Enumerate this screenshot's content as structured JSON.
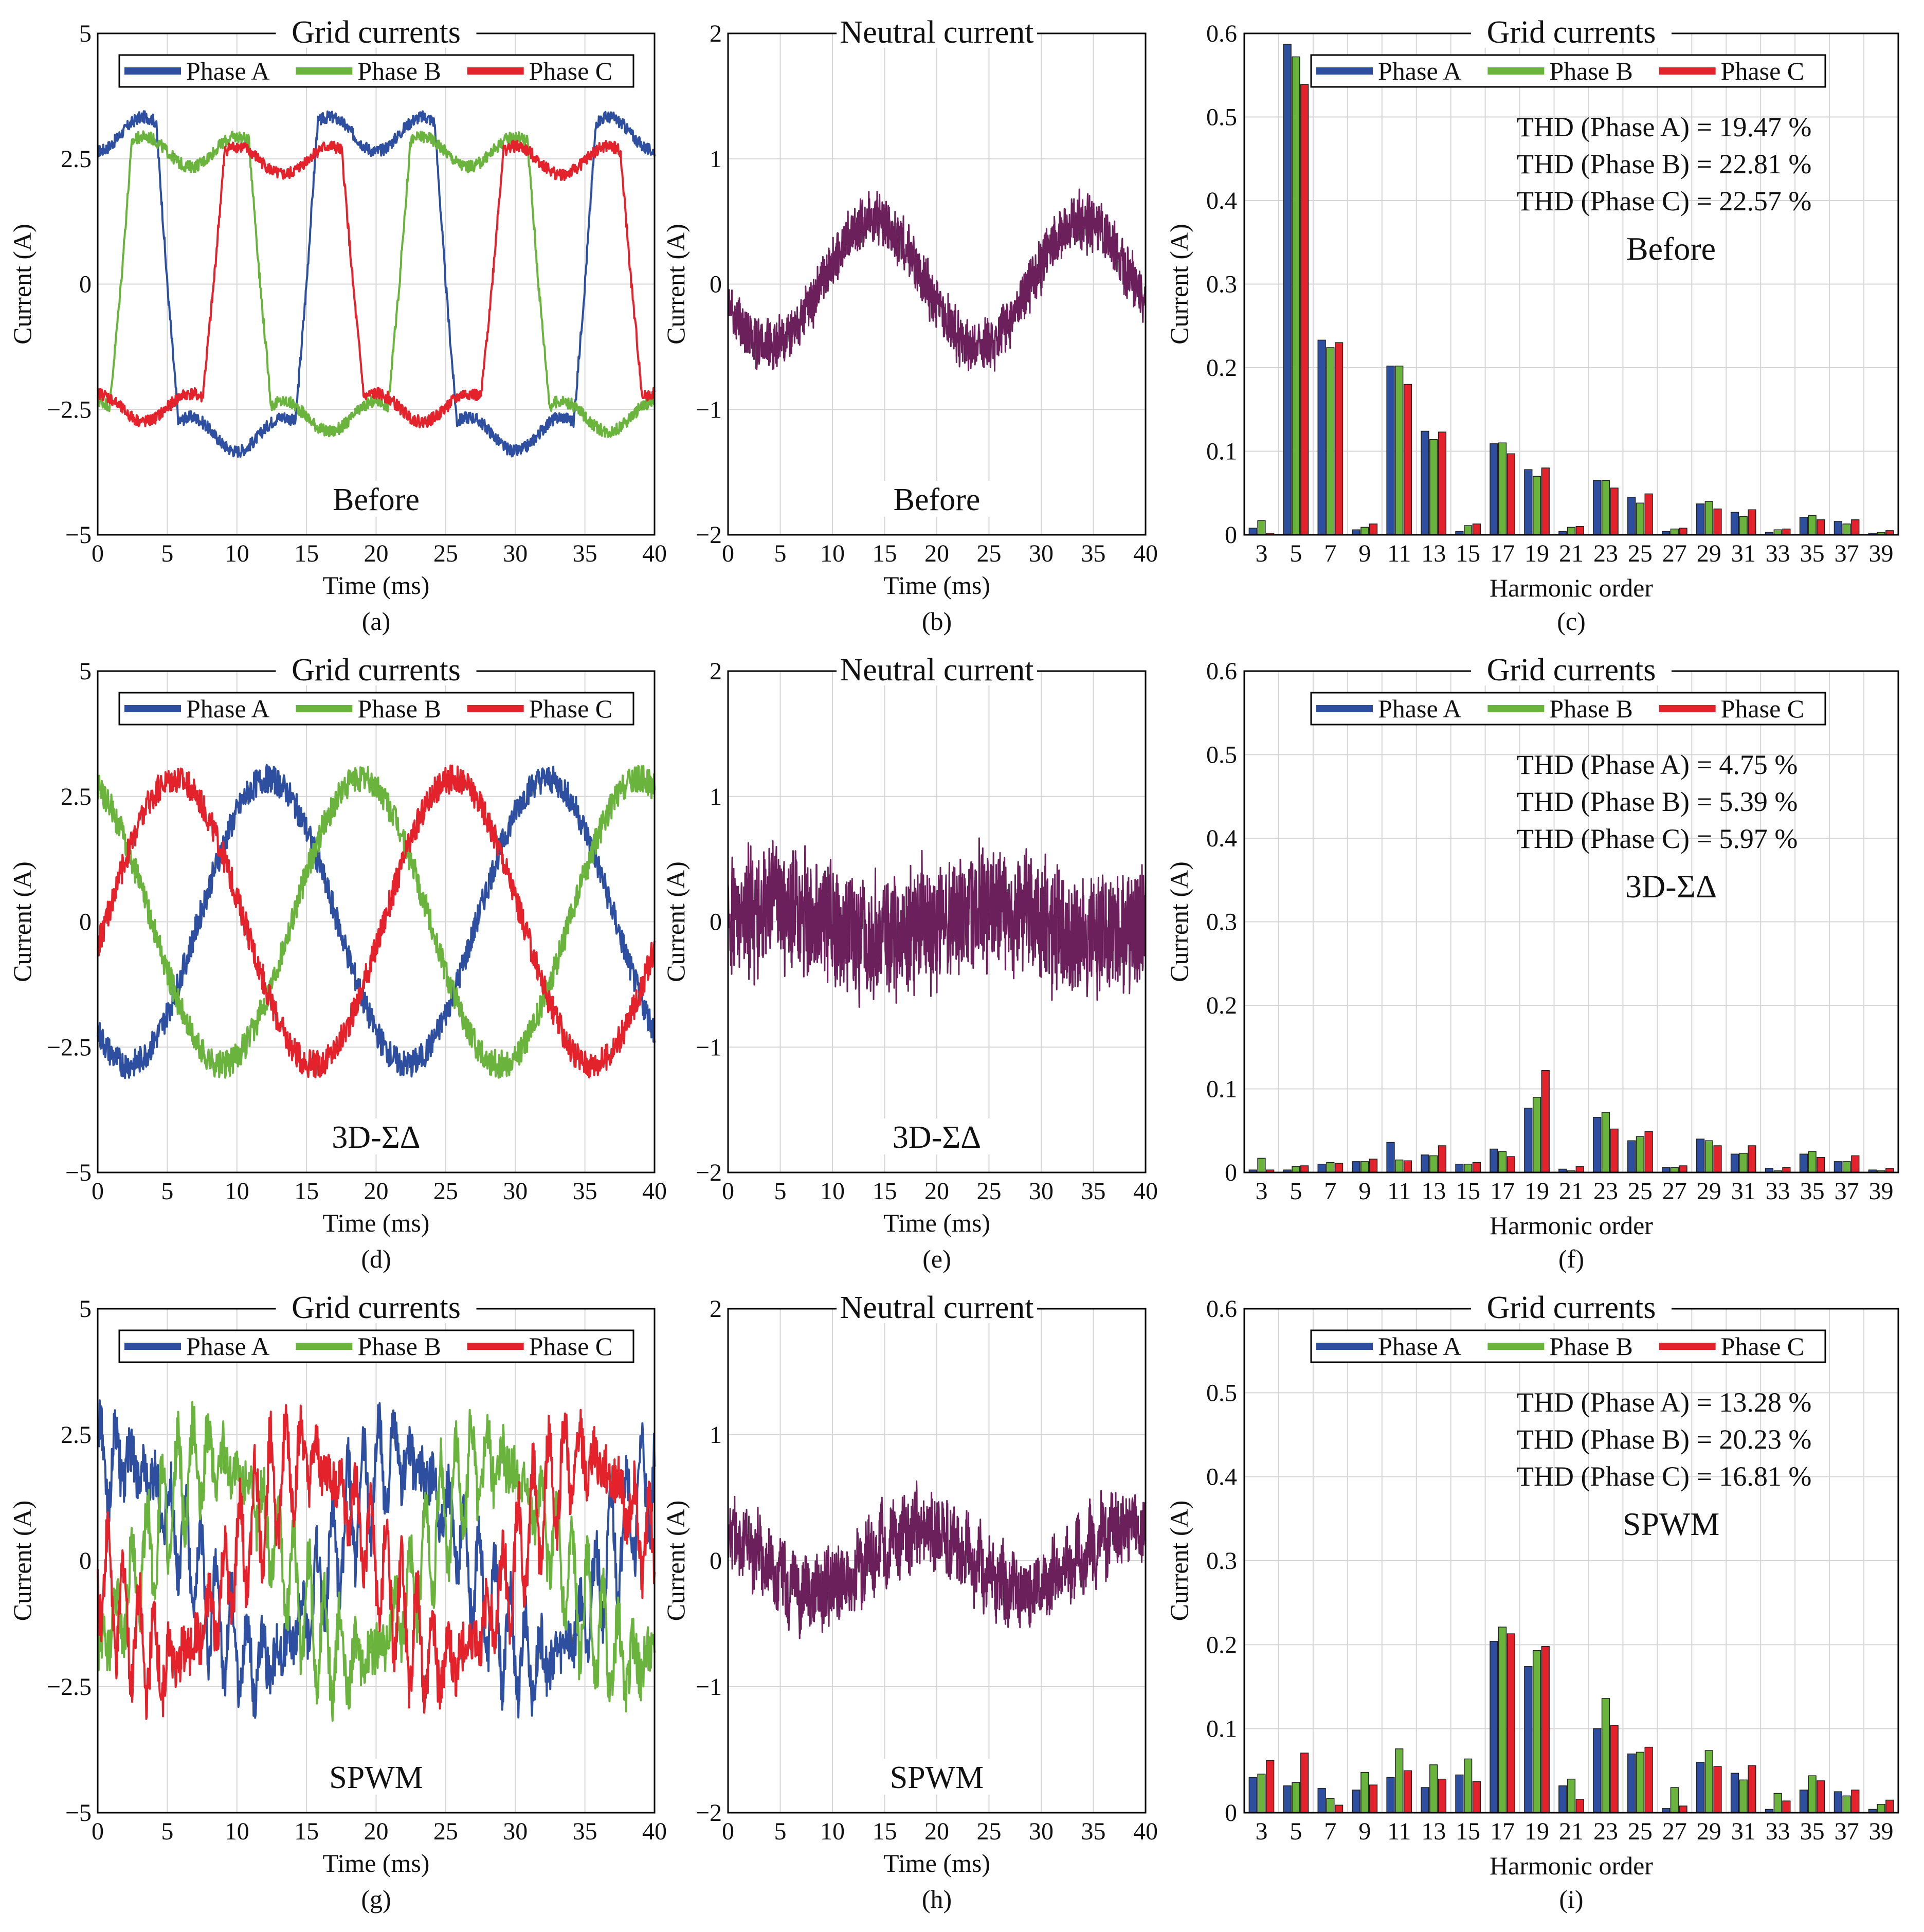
{
  "figure": {
    "xlabel_time": "Time (ms)",
    "xlabel_harmonic": "Harmonic order",
    "ylabel": "Current (A)",
    "time_ticks": [
      "0",
      "5",
      "10",
      "15",
      "20",
      "25",
      "30",
      "35",
      "40"
    ],
    "harmonic_ticks": [
      "3",
      "5",
      "7",
      "9",
      "11",
      "13",
      "15",
      "17",
      "19",
      "21",
      "23",
      "25",
      "27",
      "29",
      "31",
      "33",
      "35",
      "37",
      "39"
    ],
    "grid_yticks": [
      "−5",
      "−2.5",
      "0",
      "2.5",
      "5"
    ],
    "neutral_yticks": [
      "−2",
      "−1",
      "0",
      "1",
      "2"
    ],
    "harm_yticks": [
      "0",
      "0.1",
      "0.2",
      "0.3",
      "0.4",
      "0.5",
      "0.6"
    ],
    "colors": {
      "A": "#2e4ea0",
      "B": "#6ab43e",
      "C": "#e4222b",
      "N": "#6b1f5b",
      "grid": "#d6d6d6"
    }
  },
  "chart_data": [
    {
      "id": "a",
      "caption": "(a)",
      "type": "line",
      "title": "Grid currents",
      "annotation": "Before",
      "xlabel": "Time (ms)",
      "ylabel": "Current (A)",
      "xlim": [
        0,
        40
      ],
      "ylim": [
        -5,
        5
      ],
      "legend": [
        "Phase A",
        "Phase B",
        "Phase C"
      ],
      "legend_position": "top",
      "series": [
        {
          "name": "Phase A",
          "waveform": "square-like",
          "amplitude": 3.4,
          "phase_deg": 90,
          "frequency_hz": 50,
          "noise": 0.12
        },
        {
          "name": "Phase B",
          "waveform": "square-like",
          "amplitude": 3.0,
          "phase_deg": -30,
          "frequency_hz": 50,
          "noise": 0.12
        },
        {
          "name": "Phase C",
          "waveform": "square-like",
          "amplitude": 2.8,
          "phase_deg": -150,
          "frequency_hz": 50,
          "noise": 0.12
        }
      ]
    },
    {
      "id": "b",
      "caption": "(b)",
      "type": "line",
      "title": "Neutral current",
      "annotation": "Before",
      "xlabel": "Time (ms)",
      "ylabel": "Current (A)",
      "xlim": [
        0,
        40
      ],
      "ylim": [
        -2,
        2
      ],
      "series": [
        {
          "name": "Neutral",
          "waveform": "sine",
          "amplitude": 0.5,
          "phase_deg": 200,
          "frequency_hz": 50,
          "noise": 0.18
        }
      ]
    },
    {
      "id": "c",
      "caption": "(c)",
      "type": "bar",
      "title": "Grid currents",
      "annotation": "Before",
      "xlabel": "Harmonic order",
      "ylabel": "Current (A)",
      "ylim": [
        0,
        0.6
      ],
      "legend": [
        "Phase A",
        "Phase B",
        "Phase C"
      ],
      "legend_position": "top",
      "thd": [
        "THD (Phase A) = 19.47 %",
        "THD (Phase B) = 22.81 %",
        "THD (Phase C) = 22.57 %"
      ],
      "categories": [
        3,
        5,
        7,
        9,
        11,
        13,
        15,
        17,
        19,
        21,
        23,
        25,
        27,
        29,
        31,
        33,
        35,
        37,
        39
      ],
      "series": [
        {
          "name": "Phase A",
          "values": [
            0.008,
            0.587,
            0.233,
            0.006,
            0.202,
            0.124,
            0.004,
            0.109,
            0.078,
            0.004,
            0.065,
            0.045,
            0.004,
            0.037,
            0.027,
            0.003,
            0.021,
            0.016,
            0.002
          ]
        },
        {
          "name": "Phase B",
          "values": [
            0.017,
            0.572,
            0.224,
            0.009,
            0.202,
            0.114,
            0.011,
            0.11,
            0.07,
            0.009,
            0.065,
            0.038,
            0.007,
            0.04,
            0.022,
            0.006,
            0.023,
            0.013,
            0.003
          ]
        },
        {
          "name": "Phase C",
          "values": [
            0.002,
            0.539,
            0.23,
            0.013,
            0.18,
            0.123,
            0.013,
            0.097,
            0.08,
            0.01,
            0.056,
            0.049,
            0.008,
            0.031,
            0.03,
            0.007,
            0.018,
            0.018,
            0.005
          ]
        }
      ]
    },
    {
      "id": "d",
      "caption": "(d)",
      "type": "line",
      "title": "Grid currents",
      "annotation": "3D-ΣΔ",
      "xlabel": "Time (ms)",
      "ylabel": "Current (A)",
      "xlim": [
        0,
        40
      ],
      "ylim": [
        -5,
        5
      ],
      "legend": [
        "Phase A",
        "Phase B",
        "Phase C"
      ],
      "legend_position": "top",
      "series": [
        {
          "name": "Phase A",
          "waveform": "sine",
          "amplitude": 2.85,
          "phase_deg": 230,
          "frequency_hz": 50,
          "noise": 0.28
        },
        {
          "name": "Phase B",
          "waveform": "sine",
          "amplitude": 2.85,
          "phase_deg": 110,
          "frequency_hz": 50,
          "noise": 0.28
        },
        {
          "name": "Phase C",
          "waveform": "sine",
          "amplitude": 2.85,
          "phase_deg": -10,
          "frequency_hz": 50,
          "noise": 0.28
        }
      ]
    },
    {
      "id": "e",
      "caption": "(e)",
      "type": "line",
      "title": "Neutral current",
      "annotation": "3D-ΣΔ",
      "xlabel": "Time (ms)",
      "ylabel": "Current (A)",
      "xlim": [
        0,
        40
      ],
      "ylim": [
        -2,
        2
      ],
      "series": [
        {
          "name": "Neutral",
          "waveform": "sine",
          "amplitude": 0.12,
          "phase_deg": 0,
          "frequency_hz": 50,
          "noise": 0.42
        }
      ]
    },
    {
      "id": "f",
      "caption": "(f)",
      "type": "bar",
      "title": "Grid currents",
      "annotation": "3D-ΣΔ",
      "xlabel": "Harmonic order",
      "ylabel": "Current (A)",
      "ylim": [
        0,
        0.6
      ],
      "legend": [
        "Phase A",
        "Phase B",
        "Phase C"
      ],
      "legend_position": "top",
      "thd": [
        "THD (Phase A) = 4.75 %",
        "THD (Phase B) = 5.39 %",
        "THD (Phase C) = 5.97 %"
      ],
      "categories": [
        3,
        5,
        7,
        9,
        11,
        13,
        15,
        17,
        19,
        21,
        23,
        25,
        27,
        29,
        31,
        33,
        35,
        37,
        39
      ],
      "series": [
        {
          "name": "Phase A",
          "values": [
            0.003,
            0.003,
            0.01,
            0.013,
            0.036,
            0.021,
            0.01,
            0.028,
            0.077,
            0.004,
            0.066,
            0.038,
            0.006,
            0.04,
            0.022,
            0.005,
            0.022,
            0.013,
            0.003
          ]
        },
        {
          "name": "Phase B",
          "values": [
            0.017,
            0.007,
            0.012,
            0.013,
            0.015,
            0.02,
            0.01,
            0.025,
            0.09,
            0.002,
            0.072,
            0.043,
            0.006,
            0.038,
            0.023,
            0.002,
            0.025,
            0.013,
            0.002
          ]
        },
        {
          "name": "Phase C",
          "values": [
            0.003,
            0.008,
            0.011,
            0.016,
            0.014,
            0.032,
            0.012,
            0.019,
            0.122,
            0.007,
            0.052,
            0.049,
            0.008,
            0.032,
            0.032,
            0.006,
            0.018,
            0.02,
            0.005
          ]
        }
      ]
    },
    {
      "id": "g",
      "caption": "(g)",
      "type": "line",
      "title": "Grid currents",
      "annotation": "SPWM",
      "xlabel": "Time (ms)",
      "ylabel": "Current (A)",
      "xlim": [
        0,
        40
      ],
      "ylim": [
        -5,
        5
      ],
      "legend": [
        "Phase A",
        "Phase B",
        "Phase C"
      ],
      "legend_position": "top",
      "series": [
        {
          "name": "Phase A",
          "waveform": "sine+ripple",
          "amplitude": 2.0,
          "phase_deg": 60,
          "frequency_hz": 50,
          "noise": 0.5
        },
        {
          "name": "Phase B",
          "waveform": "sine+ripple",
          "amplitude": 2.0,
          "phase_deg": -60,
          "frequency_hz": 50,
          "noise": 0.5
        },
        {
          "name": "Phase C",
          "waveform": "sine+ripple",
          "amplitude": 2.0,
          "phase_deg": 180,
          "frequency_hz": 50,
          "noise": 0.5
        }
      ]
    },
    {
      "id": "h",
      "caption": "(h)",
      "type": "line",
      "title": "Neutral current",
      "annotation": "SPWM",
      "xlabel": "Time (ms)",
      "ylabel": "Current (A)",
      "xlim": [
        0,
        40
      ],
      "ylim": [
        -2,
        2
      ],
      "series": [
        {
          "name": "Neutral",
          "waveform": "sine+ripple",
          "amplitude": 0.25,
          "phase_deg": 120,
          "frequency_hz": 50,
          "noise": 0.25
        }
      ]
    },
    {
      "id": "i",
      "caption": "(i)",
      "type": "bar",
      "title": "Grid currents",
      "annotation": "SPWM",
      "xlabel": "Harmonic order",
      "ylabel": "Current (A)",
      "ylim": [
        0,
        0.6
      ],
      "legend": [
        "Phase A",
        "Phase B",
        "Phase C"
      ],
      "legend_position": "top",
      "thd": [
        "THD (Phase A) = 13.28 %",
        "THD (Phase B) = 20.23 %",
        "THD (Phase C) = 16.81 %"
      ],
      "categories": [
        3,
        5,
        7,
        9,
        11,
        13,
        15,
        17,
        19,
        21,
        23,
        25,
        27,
        29,
        31,
        33,
        35,
        37,
        39
      ],
      "series": [
        {
          "name": "Phase A",
          "values": [
            0.042,
            0.032,
            0.029,
            0.027,
            0.042,
            0.03,
            0.045,
            0.204,
            0.174,
            0.032,
            0.1,
            0.07,
            0.005,
            0.06,
            0.047,
            0.004,
            0.027,
            0.025,
            0.004
          ]
        },
        {
          "name": "Phase B",
          "values": [
            0.046,
            0.036,
            0.017,
            0.048,
            0.076,
            0.057,
            0.064,
            0.221,
            0.193,
            0.04,
            0.136,
            0.072,
            0.03,
            0.074,
            0.039,
            0.023,
            0.044,
            0.02,
            0.01
          ]
        },
        {
          "name": "Phase C",
          "values": [
            0.062,
            0.071,
            0.009,
            0.033,
            0.05,
            0.04,
            0.037,
            0.213,
            0.198,
            0.016,
            0.104,
            0.078,
            0.008,
            0.055,
            0.056,
            0.014,
            0.038,
            0.027,
            0.015
          ]
        }
      ]
    }
  ]
}
